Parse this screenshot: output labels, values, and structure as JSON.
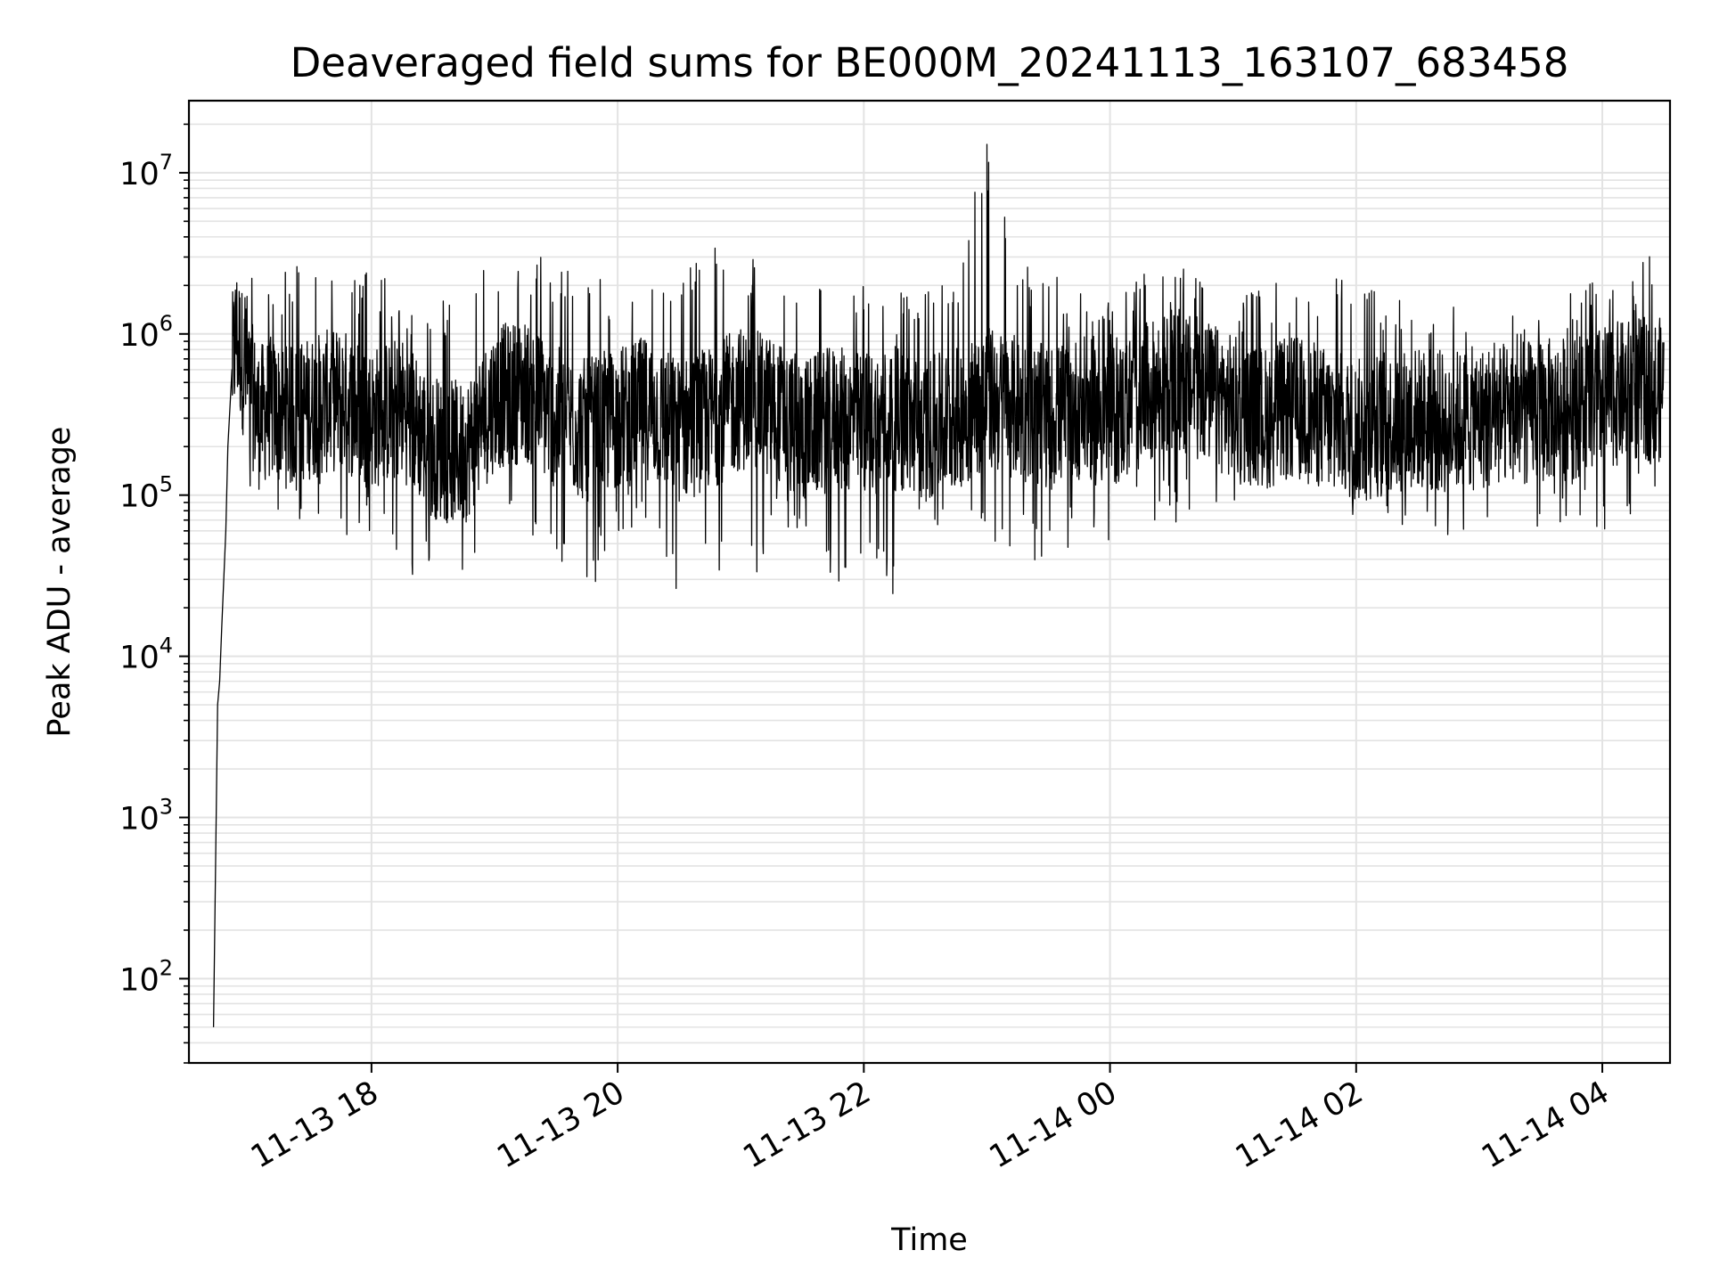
{
  "chart_data": {
    "type": "line",
    "title": "Deaveraged field sums for BE000M_20241113_163107_683458",
    "xlabel": "Time",
    "ylabel": "Peak ADU - average",
    "y_scale": "log",
    "ylim": [
      30,
      28000000
    ],
    "xlim": [
      "2024-11-13 16:31",
      "2024-11-14 04:33"
    ],
    "x_ticks": [
      {
        "value": "2024-11-13 18:00",
        "label": "11-13 18"
      },
      {
        "value": "2024-11-13 20:00",
        "label": "11-13 20"
      },
      {
        "value": "2024-11-13 22:00",
        "label": "11-13 22"
      },
      {
        "value": "2024-11-14 00:00",
        "label": "11-14 00"
      },
      {
        "value": "2024-11-14 02:00",
        "label": "11-14 02"
      },
      {
        "value": "2024-11-14 04:00",
        "label": "11-14 04"
      }
    ],
    "y_ticks": [
      {
        "value": 100,
        "base": "10",
        "exp": "2"
      },
      {
        "value": 1000,
        "base": "10",
        "exp": "3"
      },
      {
        "value": 10000,
        "base": "10",
        "exp": "4"
      },
      {
        "value": 100000,
        "base": "10",
        "exp": "5"
      },
      {
        "value": 1000000,
        "base": "10",
        "exp": "6"
      },
      {
        "value": 10000000,
        "base": "10",
        "exp": "7"
      }
    ],
    "grid": true,
    "line_color": "#000000",
    "series": [
      {
        "x": [
          "2024-11-13 16:43",
          "2024-11-13 16:44",
          "2024-11-13 16:45",
          "2024-11-13 16:46",
          "2024-11-13 16:47",
          "2024-11-13 16:48",
          "2024-11-13 16:49",
          "2024-11-13 16:50",
          "2024-11-13 16:52",
          "2024-11-13 16:54",
          "2024-11-13 16:56",
          "2024-11-13 16:58",
          "2024-11-13 17:00",
          "2024-11-13 17:05",
          "2024-11-13 17:10",
          "2024-11-13 17:20",
          "2024-11-13 17:30",
          "2024-11-13 17:45",
          "2024-11-13 18:00",
          "2024-11-13 18:15",
          "2024-11-13 18:30",
          "2024-11-13 18:45",
          "2024-11-13 19:00",
          "2024-11-13 19:15",
          "2024-11-13 19:30",
          "2024-11-13 19:45",
          "2024-11-13 20:00",
          "2024-11-13 20:15",
          "2024-11-13 20:30",
          "2024-11-13 20:45",
          "2024-11-13 21:00",
          "2024-11-13 21:15",
          "2024-11-13 21:30",
          "2024-11-13 21:45",
          "2024-11-13 22:00",
          "2024-11-13 22:15",
          "2024-11-13 22:30",
          "2024-11-13 22:45",
          "2024-11-13 23:00",
          "2024-11-13 23:15",
          "2024-11-13 23:30",
          "2024-11-13 23:45",
          "2024-11-14 00:00",
          "2024-11-14 00:15",
          "2024-11-14 00:30",
          "2024-11-14 00:45",
          "2024-11-14 01:00",
          "2024-11-14 01:15",
          "2024-11-14 01:30",
          "2024-11-14 01:45",
          "2024-11-14 02:00",
          "2024-11-14 02:15",
          "2024-11-14 02:30",
          "2024-11-14 02:45",
          "2024-11-14 03:00",
          "2024-11-14 03:15",
          "2024-11-14 03:30",
          "2024-11-14 03:45",
          "2024-11-14 04:00",
          "2024-11-14 04:15",
          "2024-11-14 04:30"
        ],
        "y": [
          50,
          500,
          5000,
          7000,
          15000,
          30000,
          60000,
          200000,
          600000,
          1000000,
          800000,
          600000,
          500000,
          300000,
          350000,
          300000,
          350000,
          400000,
          300000,
          350000,
          200000,
          180000,
          400000,
          450000,
          300000,
          250000,
          300000,
          350000,
          250000,
          300000,
          400000,
          350000,
          250000,
          300000,
          280000,
          300000,
          250000,
          300000,
          400000,
          350000,
          300000,
          350000,
          300000,
          400000,
          500000,
          450000,
          350000,
          300000,
          350000,
          300000,
          250000,
          280000,
          300000,
          280000,
          300000,
          320000,
          330000,
          350000,
          400000,
          450000,
          450000
        ],
        "spike_low": [
          50,
          500,
          5000,
          6000,
          6000,
          20000,
          40000,
          80000,
          150000,
          200000,
          200000,
          150000,
          100000,
          80000,
          70000,
          60000,
          80000,
          50000,
          60000,
          25000,
          40000,
          30000,
          50000,
          60000,
          30000,
          22000,
          60000,
          55000,
          22000,
          40000,
          21000,
          50000,
          50000,
          28000,
          30000,
          22000,
          60000,
          60000,
          50000,
          45000,
          30000,
          60000,
          26000,
          80000,
          60000,
          90000,
          80000,
          90000,
          80000,
          80000,
          70000,
          60000,
          55000,
          42000,
          60000,
          70000,
          60000,
          70000,
          47000,
          70000,
          120000
        ],
        "spike_high": [
          55,
          1000,
          7000,
          10000,
          25000,
          40000,
          80000,
          500000,
          1500000,
          3100000,
          2500000,
          2400000,
          2800000,
          2700000,
          2300000,
          2800000,
          3000000,
          2500000,
          2500000,
          2000000,
          1600000,
          1800000,
          3000000,
          3600000,
          2800000,
          2500000,
          2000000,
          3500000,
          2800000,
          3700000,
          3400000,
          2800000,
          2400000,
          2200000,
          2100000,
          1800000,
          2000000,
          2600000,
          15000000,
          2700000,
          2400000,
          2100000,
          1700000,
          2300000,
          2800000,
          2600000,
          1800000,
          2200000,
          2300000,
          2400000,
          2300000,
          1800000,
          1900000,
          1500000,
          1400000,
          1300000,
          1500000,
          1800000,
          3600000,
          2300000,
          5500000
        ]
      }
    ]
  }
}
